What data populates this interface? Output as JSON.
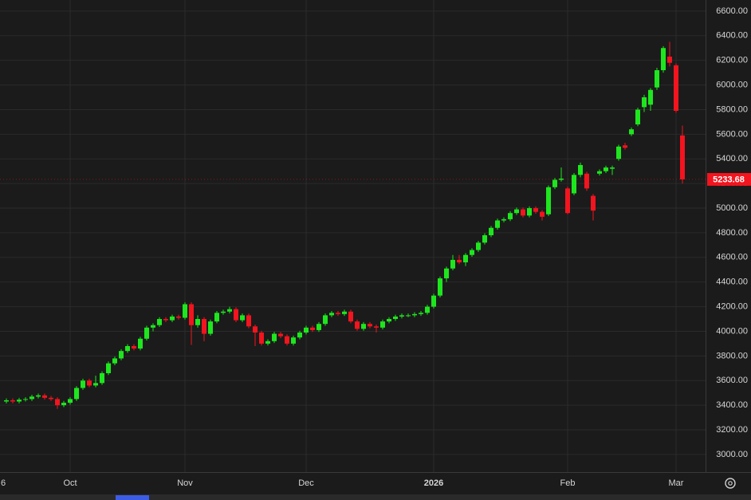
{
  "chart_data": {
    "type": "candlestick",
    "categories": [
      "6",
      null,
      null,
      null,
      null,
      null,
      null,
      null,
      null,
      null,
      "Oct",
      null,
      null,
      null,
      null,
      null,
      null,
      null,
      null,
      null,
      null,
      null,
      null,
      null,
      null,
      null,
      null,
      null,
      "Nov",
      null,
      null,
      null,
      null,
      null,
      null,
      null,
      null,
      null,
      null,
      null,
      null,
      null,
      null,
      null,
      null,
      null,
      null,
      "Dec",
      null,
      null,
      null,
      null,
      null,
      null,
      null,
      null,
      null,
      null,
      null,
      null,
      null,
      null,
      null,
      null,
      null,
      null,
      null,
      "2026",
      null,
      null,
      null,
      null,
      null,
      null,
      null,
      null,
      null,
      null,
      null,
      null,
      null,
      null,
      null,
      null,
      null,
      null,
      null,
      null,
      "Feb",
      null,
      null,
      null,
      null,
      null,
      null,
      null,
      null,
      null,
      null,
      null,
      null,
      null,
      null,
      null,
      null,
      "Mar",
      null
    ],
    "open": [
      3430,
      3440,
      3430,
      3445,
      3450,
      3470,
      3480,
      3460,
      3450,
      3400,
      3420,
      3450,
      3540,
      3600,
      3560,
      3580,
      3660,
      3740,
      3780,
      3840,
      3880,
      3860,
      3940,
      4030,
      4050,
      4100,
      4090,
      4120,
      4110,
      4220,
      4050,
      4100,
      3980,
      4080,
      4150,
      4160,
      4180,
      4090,
      4130,
      4040,
      3990,
      3900,
      3920,
      3980,
      3960,
      3900,
      3950,
      3990,
      4030,
      4010,
      4060,
      4130,
      4150,
      4140,
      4160,
      4080,
      4020,
      4060,
      4040,
      4030,
      4080,
      4100,
      4120,
      4130,
      4130,
      4140,
      4150,
      4200,
      4290,
      4430,
      4510,
      4580,
      4560,
      4620,
      4660,
      4720,
      4780,
      4840,
      4900,
      4910,
      4960,
      4990,
      4940,
      5000,
      4970,
      4950,
      5170,
      5230,
      5160,
      5120,
      5270,
      5280,
      5100,
      5280,
      5300,
      5320,
      5400,
      5510,
      5600,
      5680,
      5820,
      5840,
      5980,
      6120,
      6230,
      6160,
      5590
    ],
    "high": [
      3455,
      3455,
      3460,
      3465,
      3485,
      3495,
      3495,
      3475,
      3465,
      3435,
      3465,
      3555,
      3615,
      3615,
      3640,
      3675,
      3755,
      3795,
      3855,
      3895,
      3895,
      3955,
      4045,
      4065,
      4115,
      4115,
      4135,
      4135,
      4235,
      4235,
      4130,
      4115,
      4095,
      4165,
      4175,
      4200,
      4195,
      4145,
      4145,
      4055,
      4005,
      3935,
      3995,
      3995,
      3975,
      3965,
      4005,
      4045,
      4045,
      4075,
      4145,
      4165,
      4165,
      4175,
      4175,
      4095,
      4075,
      4075,
      4055,
      4095,
      4115,
      4135,
      4145,
      4145,
      4155,
      4165,
      4215,
      4305,
      4445,
      4525,
      4620,
      4620,
      4635,
      4675,
      4735,
      4795,
      4855,
      4915,
      4925,
      4975,
      5005,
      5005,
      5015,
      5015,
      4985,
      5185,
      5245,
      5330,
      5175,
      5285,
      5370,
      5295,
      5115,
      5315,
      5345,
      5345,
      5515,
      5530,
      5655,
      5815,
      5920,
      5975,
      6140,
      6315,
      6350,
      6175,
      5670
    ],
    "low": [
      3415,
      3415,
      3415,
      3430,
      3435,
      3455,
      3445,
      3435,
      3370,
      3385,
      3405,
      3435,
      3525,
      3545,
      3545,
      3565,
      3645,
      3725,
      3765,
      3825,
      3845,
      3845,
      3925,
      4000,
      4035,
      4075,
      4075,
      4095,
      4095,
      3890,
      4030,
      3920,
      3965,
      4065,
      4135,
      4145,
      4075,
      4075,
      4025,
      3880,
      3885,
      3885,
      3905,
      3945,
      3885,
      3885,
      3935,
      3975,
      3995,
      3995,
      4045,
      4115,
      4125,
      4125,
      4065,
      4005,
      4005,
      4025,
      3990,
      4015,
      4065,
      4085,
      4105,
      4115,
      4115,
      4125,
      4135,
      4185,
      4275,
      4400,
      4495,
      4545,
      4530,
      4605,
      4645,
      4705,
      4765,
      4825,
      4885,
      4895,
      4945,
      4925,
      4925,
      4955,
      4900,
      4935,
      5155,
      5215,
      4950,
      5105,
      5250,
      5140,
      4900,
      5265,
      5285,
      5270,
      5385,
      5475,
      5585,
      5665,
      5780,
      5790,
      5960,
      6100,
      6150,
      5775,
      5200
    ],
    "close": [
      3440,
      3430,
      3445,
      3450,
      3470,
      3480,
      3460,
      3450,
      3400,
      3420,
      3450,
      3540,
      3600,
      3560,
      3580,
      3660,
      3740,
      3780,
      3840,
      3880,
      3860,
      3940,
      4030,
      4050,
      4100,
      4090,
      4120,
      4110,
      4220,
      4050,
      4100,
      3980,
      4080,
      4150,
      4160,
      4180,
      4090,
      4130,
      4040,
      3990,
      3900,
      3920,
      3980,
      3960,
      3900,
      3950,
      3990,
      4030,
      4010,
      4060,
      4130,
      4150,
      4140,
      4160,
      4080,
      4020,
      4060,
      4040,
      4030,
      4080,
      4100,
      4120,
      4130,
      4130,
      4140,
      4150,
      4200,
      4290,
      4430,
      4510,
      4580,
      4560,
      4620,
      4660,
      4720,
      4780,
      4840,
      4900,
      4910,
      4960,
      4990,
      4940,
      5000,
      4970,
      4930,
      5170,
      5230,
      5240,
      4960,
      5270,
      5350,
      5160,
      4980,
      5300,
      5330,
      5330,
      5500,
      5490,
      5640,
      5800,
      5900,
      5960,
      6120,
      6300,
      6180,
      5790,
      5233.68
    ],
    "up_color": "#1ee61e",
    "down_color": "#f2141e",
    "last_price": 5233.68,
    "ylim": [
      2857,
      6690
    ],
    "yticks": [
      {
        "value": 3000,
        "label": "3000.00"
      },
      {
        "value": 3200,
        "label": "3200.00"
      },
      {
        "value": 3400,
        "label": "3400.00"
      },
      {
        "value": 3600,
        "label": "3600.00"
      },
      {
        "value": 3800,
        "label": "3800.00"
      },
      {
        "value": 4000,
        "label": "4000.00"
      },
      {
        "value": 4200,
        "label": "4200.00"
      },
      {
        "value": 4400,
        "label": "4400.00"
      },
      {
        "value": 4600,
        "label": "4600.00"
      },
      {
        "value": 4800,
        "label": "4800.00"
      },
      {
        "value": 5000,
        "label": "5000.00"
      },
      {
        "value": 5200,
        "label": "5200.00"
      },
      {
        "value": 5400,
        "label": "5400.00"
      },
      {
        "value": 5600,
        "label": "5600.00"
      },
      {
        "value": 5800,
        "label": "5800.00"
      },
      {
        "value": 6000,
        "label": "6000.00"
      },
      {
        "value": 6200,
        "label": "6200.00"
      },
      {
        "value": 6400,
        "label": "6400.00"
      },
      {
        "value": 6600,
        "label": "6600.00"
      }
    ],
    "grid": true
  }
}
